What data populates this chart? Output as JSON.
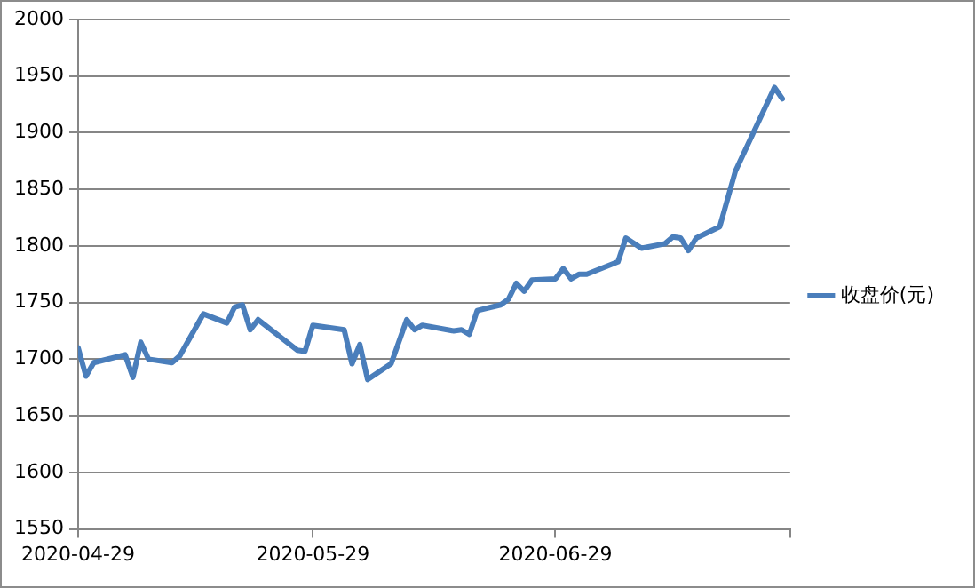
{
  "chart_data": {
    "type": "line",
    "x": [
      "2020-04-29",
      "2020-04-30",
      "2020-05-01",
      "2020-05-05",
      "2020-05-06",
      "2020-05-07",
      "2020-05-08",
      "2020-05-11",
      "2020-05-12",
      "2020-05-15",
      "2020-05-18",
      "2020-05-19",
      "2020-05-20",
      "2020-05-21",
      "2020-05-22",
      "2020-05-27",
      "2020-05-28",
      "2020-05-29",
      "2020-06-02",
      "2020-06-03",
      "2020-06-04",
      "2020-06-05",
      "2020-06-08",
      "2020-06-10",
      "2020-06-11",
      "2020-06-12",
      "2020-06-16",
      "2020-06-17",
      "2020-06-18",
      "2020-06-19",
      "2020-06-22",
      "2020-06-23",
      "2020-06-24",
      "2020-06-25",
      "2020-06-26",
      "2020-06-29",
      "2020-06-30",
      "2020-07-01",
      "2020-07-02",
      "2020-07-03",
      "2020-07-07",
      "2020-07-08",
      "2020-07-10",
      "2020-07-13",
      "2020-07-14",
      "2020-07-15",
      "2020-07-16",
      "2020-07-17",
      "2020-07-20",
      "2020-07-22",
      "2020-07-27",
      "2020-07-28"
    ],
    "series": [
      {
        "name": "收盘价(元)",
        "color": "#4a7ebb",
        "values": [
          1710,
          1685,
          1697,
          1704,
          1684,
          1715,
          1700,
          1697,
          1703,
          1740,
          1732,
          1746,
          1748,
          1726,
          1735,
          1708,
          1707,
          1730,
          1726,
          1696,
          1713,
          1682,
          1696,
          1735,
          1726,
          1730,
          1725,
          1726,
          1722,
          1743,
          1748,
          1753,
          1767,
          1760,
          1770,
          1771,
          1780,
          1771,
          1775,
          1775,
          1786,
          1807,
          1798,
          1802,
          1808,
          1807,
          1796,
          1807,
          1817,
          1866,
          1940,
          1930
        ]
      }
    ],
    "xlim": [
      "2020-04-29",
      "2020-07-29"
    ],
    "xticks": [
      "2020-04-29",
      "2020-05-29",
      "2020-06-29",
      {
        "value": "2020-07-29",
        "label": null
      }
    ],
    "ylim": [
      1550,
      2000
    ],
    "yticks": [
      1550,
      1600,
      1650,
      1700,
      1750,
      1800,
      1850,
      1900,
      1950,
      2000
    ],
    "grid": "y",
    "legend": "right"
  }
}
